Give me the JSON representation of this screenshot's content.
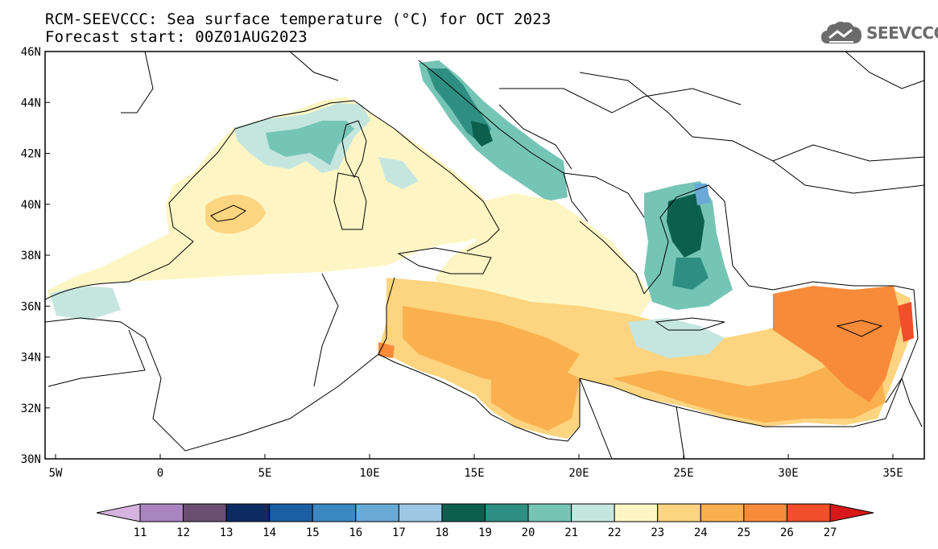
{
  "header": {
    "title_line1": "RCM-SEEVCCC: Sea surface temperature (°C) for OCT 2023",
    "title_line2": "Forecast start: 00Z01AUG2023",
    "logo_text": "SEEVCCC"
  },
  "map": {
    "projection": "lat-lon",
    "lon_range": [
      -5.5,
      36.5
    ],
    "lat_range": [
      30,
      46
    ],
    "x_ticks": [
      "5W",
      "0",
      "5E",
      "10E",
      "15E",
      "20E",
      "25E",
      "30E",
      "35E"
    ],
    "x_tick_values": [
      -5,
      0,
      5,
      10,
      15,
      20,
      25,
      30,
      35
    ],
    "y_ticks": [
      "30N",
      "32N",
      "34N",
      "36N",
      "38N",
      "40N",
      "42N",
      "44N",
      "46N"
    ],
    "y_tick_values": [
      30,
      32,
      34,
      36,
      38,
      40,
      42,
      44,
      46
    ],
    "variable": "Sea surface temperature",
    "units": "°C"
  },
  "colorbar": {
    "labels": [
      "11",
      "12",
      "13",
      "14",
      "15",
      "16",
      "17",
      "18",
      "19",
      "20",
      "21",
      "22",
      "23",
      "24",
      "25",
      "26",
      "27"
    ],
    "colors": [
      "#d7b4e0",
      "#a985bf",
      "#6a4f72",
      "#0b2b62",
      "#1a5ea3",
      "#3b88c2",
      "#6aa9d6",
      "#9ec7e3",
      "#0b5f4d",
      "#2f8e82",
      "#75c5b6",
      "#c5e6df",
      "#fdf6c4",
      "#fdd47f",
      "#fbb04f",
      "#f88b3a",
      "#f04f2a",
      "#d8191a"
    ],
    "extend": "both"
  },
  "colors": {
    "land_outline": "#000000",
    "bg_land": "#ffffff"
  }
}
